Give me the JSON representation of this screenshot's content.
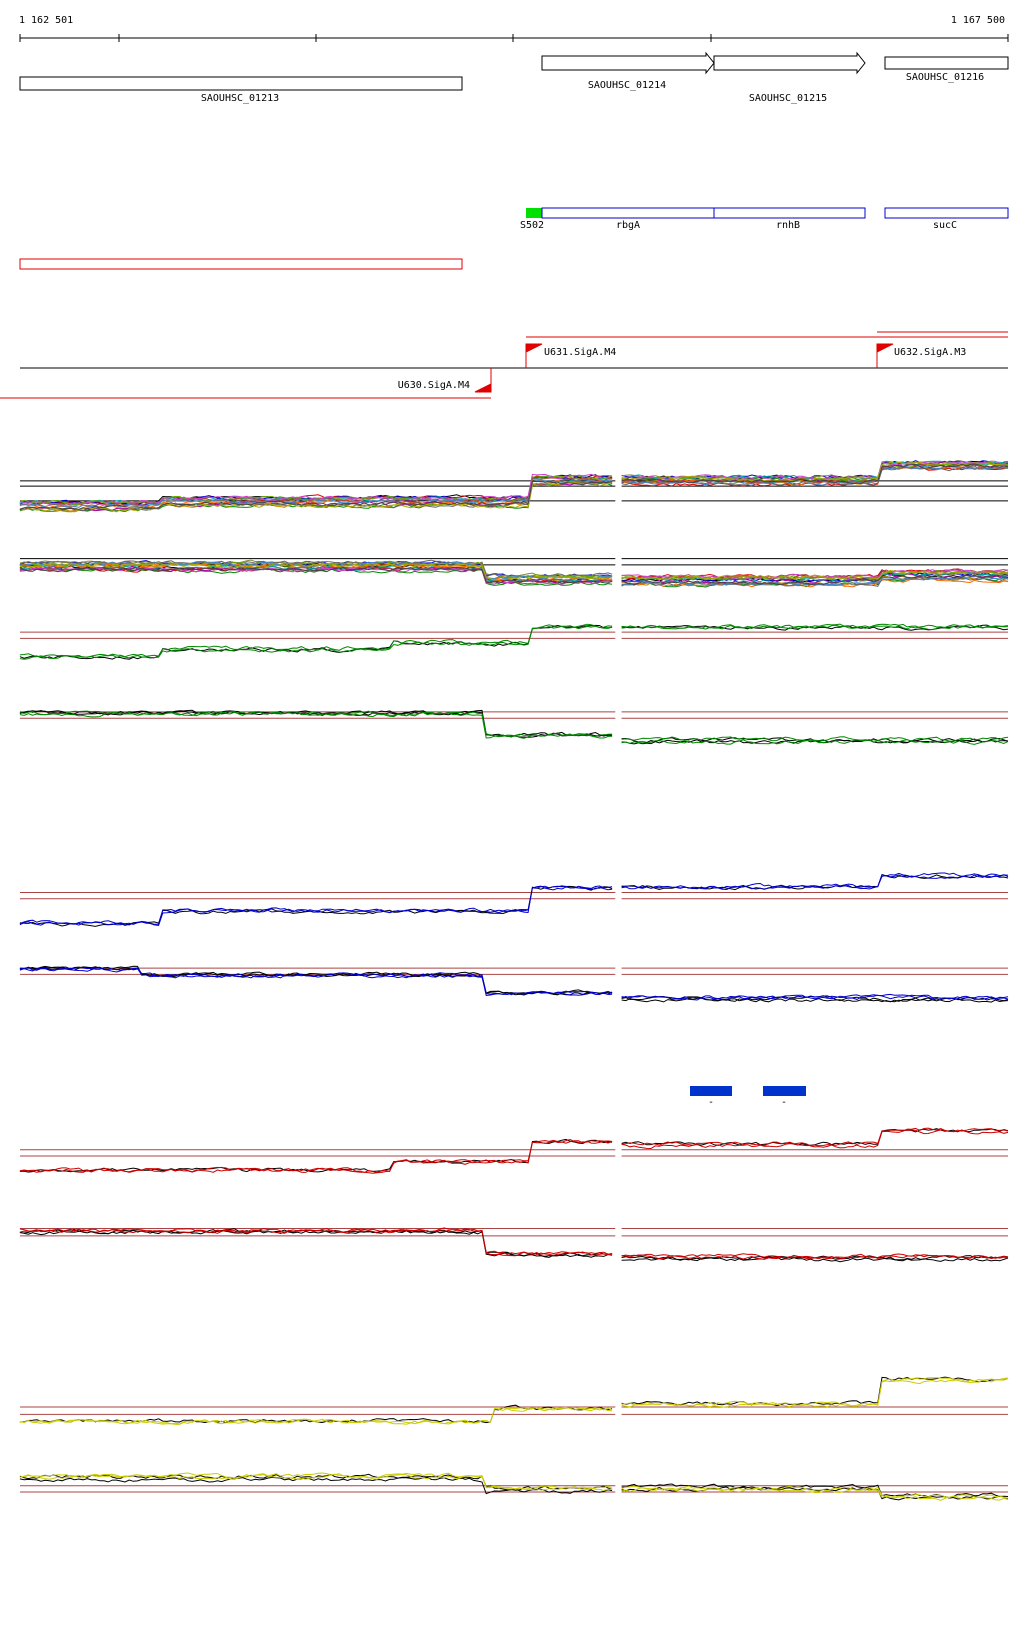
{
  "coords": {
    "start": "1 162 501",
    "end": "1 167 500"
  },
  "genes": [
    {
      "label": "SAOUHSC_01213"
    },
    {
      "label": "SAOUHSC_01214"
    },
    {
      "label": "SAOUHSC_01215"
    },
    {
      "label": "SAOUHSC_01216"
    }
  ],
  "features": [
    {
      "label": "S502"
    },
    {
      "label": "rbgA"
    },
    {
      "label": "rnhB"
    },
    {
      "label": "sucC"
    }
  ],
  "promoters": [
    {
      "label": "U631.SigA.M4"
    },
    {
      "label": "U632.SigA.M3"
    },
    {
      "label": "U630.SigA.M4"
    }
  ],
  "conditions": [
    {
      "label": "-"
    },
    {
      "label": "-"
    }
  ]
}
